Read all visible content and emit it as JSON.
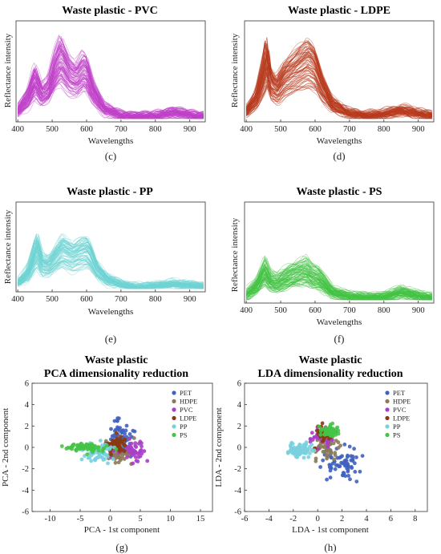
{
  "panels": [
    {
      "id": "c",
      "title": "Waste plastic - PVC",
      "label": "(c)",
      "xlabel": "Wavelengths",
      "ylabel": "Reflectance intensity",
      "xticks": [
        "400",
        "500",
        "600",
        "700",
        "800",
        "900"
      ],
      "color": "#c040c8"
    },
    {
      "id": "d",
      "title": "Waste plastic - LDPE",
      "label": "(d)",
      "xlabel": "Wavelengths",
      "ylabel": "Reflectance intensity",
      "xticks": [
        "400",
        "500",
        "600",
        "700",
        "800",
        "900"
      ],
      "color": "#b83a1e"
    },
    {
      "id": "e",
      "title": "Waste plastic - PP",
      "label": "(e)",
      "xlabel": "Wavelengths",
      "ylabel": "Reflectance intensity",
      "xticks": [
        "400",
        "500",
        "600",
        "700",
        "800",
        "900"
      ],
      "color": "#6fd3d3"
    },
    {
      "id": "f",
      "title": "Waste plastic - PS",
      "label": "(f)",
      "xlabel": "Wavelengths",
      "ylabel": "Reflectance intensity",
      "xticks": [
        "400",
        "500",
        "600",
        "700",
        "800",
        "900"
      ],
      "color": "#44c244"
    },
    {
      "id": "g",
      "title": [
        "Waste plastic",
        "PCA dimensionality reduction"
      ],
      "label": "(g)",
      "xlabel": "PCA - 1st component",
      "ylabel": "PCA - 2nd component",
      "xticks": [
        "-10",
        "-5",
        "0",
        "5",
        "10",
        "15"
      ],
      "yticks": [
        "6",
        "4",
        "2",
        "0",
        "-2",
        "-4",
        "-6"
      ]
    },
    {
      "id": "h",
      "title": [
        "Waste plastic",
        "LDA dimensionality reduction"
      ],
      "label": "(h)",
      "xlabel": "LDA - 1st component",
      "ylabel": "LDA - 2nd component",
      "xticks": [
        "-6",
        "-4",
        "-2",
        "0",
        "2",
        "4",
        "6",
        "8"
      ],
      "yticks": [
        "6",
        "4",
        "2",
        "0",
        "-2",
        "-4",
        "-6"
      ]
    }
  ],
  "legend": [
    {
      "name": "PET",
      "color": "#3f62c0"
    },
    {
      "name": "HDPE",
      "color": "#8a7a58"
    },
    {
      "name": "PVC",
      "color": "#a83ec8"
    },
    {
      "name": "LDPE",
      "color": "#8a3a12"
    },
    {
      "name": "PP",
      "color": "#79d0de"
    },
    {
      "name": "PS",
      "color": "#45c445"
    }
  ],
  "chart_data": [
    {
      "type": "line",
      "title": "Waste plastic - PVC",
      "xlabel": "Wavelengths",
      "ylabel": "Reflectance intensity",
      "xlim": [
        395,
        945
      ],
      "xticks": [
        400,
        500,
        600,
        700,
        800,
        900
      ],
      "series_count": 90,
      "mean_spectrum_x": [
        400,
        430,
        450,
        470,
        490,
        510,
        525,
        550,
        570,
        590,
        600,
        620,
        650,
        700,
        750,
        800,
        850,
        880,
        920,
        940
      ],
      "mean_spectrum_y": [
        0.12,
        0.3,
        0.55,
        0.35,
        0.42,
        0.72,
        0.85,
        0.62,
        0.56,
        0.68,
        0.65,
        0.38,
        0.15,
        0.06,
        0.04,
        0.05,
        0.1,
        0.08,
        0.05,
        0.05
      ],
      "color": "#c040c8"
    },
    {
      "type": "line",
      "title": "Waste plastic - LDPE",
      "xlabel": "Wavelengths",
      "ylabel": "Reflectance intensity",
      "xlim": [
        395,
        945
      ],
      "xticks": [
        400,
        500,
        600,
        700,
        800,
        900
      ],
      "series_count": 90,
      "mean_spectrum_x": [
        400,
        430,
        450,
        460,
        470,
        490,
        510,
        530,
        560,
        580,
        600,
        620,
        650,
        700,
        750,
        800,
        850,
        880,
        920,
        940
      ],
      "mean_spectrum_y": [
        0.1,
        0.28,
        0.6,
        0.82,
        0.5,
        0.4,
        0.55,
        0.62,
        0.72,
        0.78,
        0.7,
        0.45,
        0.2,
        0.08,
        0.05,
        0.07,
        0.12,
        0.1,
        0.06,
        0.05
      ],
      "color": "#b83a1e"
    },
    {
      "type": "line",
      "title": "Waste plastic - PP",
      "xlabel": "Wavelengths",
      "ylabel": "Reflectance intensity",
      "xlim": [
        395,
        945
      ],
      "xticks": [
        400,
        500,
        600,
        700,
        800,
        900
      ],
      "series_count": 90,
      "mean_spectrum_x": [
        400,
        430,
        455,
        470,
        490,
        510,
        530,
        560,
        580,
        600,
        610,
        630,
        660,
        700,
        750,
        800,
        850,
        880,
        920,
        940
      ],
      "mean_spectrum_y": [
        0.1,
        0.25,
        0.62,
        0.38,
        0.35,
        0.48,
        0.6,
        0.5,
        0.55,
        0.58,
        0.52,
        0.3,
        0.15,
        0.07,
        0.04,
        0.05,
        0.09,
        0.07,
        0.05,
        0.05
      ],
      "color": "#6fd3d3"
    },
    {
      "type": "line",
      "title": "Waste plastic - PS",
      "xlabel": "Wavelengths",
      "ylabel": "Reflectance intensity",
      "xlim": [
        395,
        945
      ],
      "xticks": [
        400,
        500,
        600,
        700,
        800,
        900
      ],
      "series_count": 90,
      "mean_spectrum_x": [
        400,
        430,
        455,
        470,
        490,
        510,
        530,
        550,
        575,
        590,
        610,
        630,
        650,
        700,
        750,
        800,
        850,
        880,
        920,
        940
      ],
      "mean_spectrum_y": [
        0.08,
        0.2,
        0.42,
        0.28,
        0.25,
        0.3,
        0.35,
        0.38,
        0.42,
        0.35,
        0.32,
        0.22,
        0.12,
        0.06,
        0.04,
        0.05,
        0.12,
        0.09,
        0.05,
        0.04
      ],
      "color": "#44c244"
    },
    {
      "type": "scatter",
      "title": "Waste plastic PCA dimensionality reduction",
      "xlabel": "PCA - 1st component",
      "ylabel": "PCA - 2nd component",
      "xlim": [
        -13,
        17
      ],
      "ylim": [
        -6,
        6
      ],
      "series": [
        {
          "name": "PET",
          "center": [
            2,
            1
          ],
          "spread": [
            2.5,
            1.8
          ],
          "n": 60
        },
        {
          "name": "HDPE",
          "center": [
            1.5,
            -0.5
          ],
          "spread": [
            2.5,
            1.3
          ],
          "n": 60
        },
        {
          "name": "PVC",
          "center": [
            4,
            -0.3
          ],
          "spread": [
            3,
            1.2
          ],
          "n": 50
        },
        {
          "name": "LDPE",
          "center": [
            1,
            0.3
          ],
          "spread": [
            2,
            1.0
          ],
          "n": 50
        },
        {
          "name": "PP",
          "center": [
            -2,
            -0.5
          ],
          "spread": [
            3,
            1.0
          ],
          "n": 70
        },
        {
          "name": "PS",
          "center": [
            -4,
            0
          ],
          "spread": [
            4,
            0.5
          ],
          "n": 70
        }
      ]
    },
    {
      "type": "scatter",
      "title": "Waste plastic LDA dimensionality reduction",
      "xlabel": "LDA - 1st component",
      "ylabel": "LDA - 2nd component",
      "xlim": [
        -6,
        9
      ],
      "ylim": [
        -6,
        6
      ],
      "series": [
        {
          "name": "PET",
          "center": [
            2,
            -1.5
          ],
          "spread": [
            1.8,
            1.5
          ],
          "n": 70
        },
        {
          "name": "HDPE",
          "center": [
            0.8,
            0
          ],
          "spread": [
            1.2,
            1.3
          ],
          "n": 50
        },
        {
          "name": "PVC",
          "center": [
            0.5,
            1
          ],
          "spread": [
            1.3,
            1.2
          ],
          "n": 40
        },
        {
          "name": "LDPE",
          "center": [
            0.5,
            1.2
          ],
          "spread": [
            0.8,
            0.9
          ],
          "n": 40
        },
        {
          "name": "PP",
          "center": [
            -1.5,
            -0.3
          ],
          "spread": [
            1.3,
            0.8
          ],
          "n": 70
        },
        {
          "name": "PS",
          "center": [
            1,
            1.5
          ],
          "spread": [
            0.8,
            0.6
          ],
          "n": 60
        }
      ]
    }
  ]
}
